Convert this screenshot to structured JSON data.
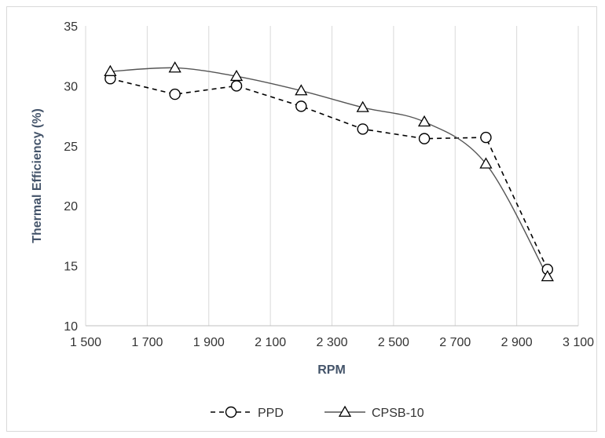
{
  "chart_data": {
    "type": "line",
    "title": "",
    "xlabel": "RPM",
    "ylabel": "Thermal Efficiency (%)",
    "xlim": [
      1500,
      3100
    ],
    "ylim": [
      10,
      35
    ],
    "x_ticks": [
      "1 500",
      "1 700",
      "1 900",
      "2 100",
      "2 300",
      "2 500",
      "2 700",
      "2 900",
      "3 100"
    ],
    "y_ticks": [
      "10",
      "15",
      "20",
      "25",
      "30",
      "35"
    ],
    "grid": "vertical",
    "legend_position": "bottom",
    "series": [
      {
        "name": "PPD",
        "marker": "circle",
        "line_style": "dashed",
        "color": "#000000",
        "x": [
          1580,
          1790,
          1990,
          2200,
          2400,
          2600,
          2800,
          3000
        ],
        "y": [
          30.6,
          29.3,
          30.0,
          28.3,
          26.4,
          25.6,
          25.7,
          14.7
        ]
      },
      {
        "name": "CPSB-10",
        "marker": "triangle",
        "line_style": "solid",
        "color": "#000000",
        "x": [
          1580,
          1790,
          1990,
          2200,
          2400,
          2600,
          2800,
          3000
        ],
        "y": [
          31.2,
          31.5,
          30.8,
          29.6,
          28.2,
          27.0,
          23.5,
          14.1
        ]
      }
    ]
  }
}
